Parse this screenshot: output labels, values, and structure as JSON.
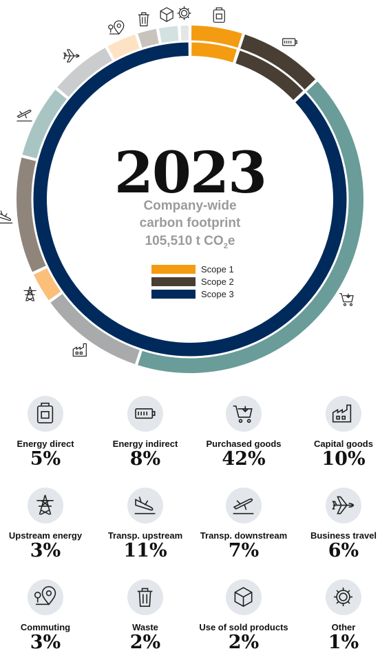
{
  "chart_data": {
    "type": "donut",
    "year": "2023",
    "subtitle": [
      "Company-wide",
      "carbon footprint"
    ],
    "total": {
      "value": "105,510",
      "unit_prefix": "t CO",
      "unit_sub": "2",
      "unit_suffix": "e"
    },
    "legend": [
      {
        "label": "Scope 1",
        "color": "#f39c12"
      },
      {
        "label": "Scope 2",
        "color": "#483e33"
      },
      {
        "label": "Scope 3",
        "color": "#002a5c"
      }
    ],
    "inner_ring": [
      {
        "scope": "Scope 1",
        "value": 5
      },
      {
        "scope": "Scope 2",
        "value": 8
      },
      {
        "scope": "Scope 3",
        "value": 87
      }
    ],
    "outer_ring": [
      {
        "category": "Energy direct",
        "value": 5,
        "color": "#f39c12",
        "icon": "fuel-can-icon"
      },
      {
        "category": "Energy indirect",
        "value": 8,
        "color": "#483e33",
        "icon": "battery-icon"
      },
      {
        "category": "Purchased goods",
        "value": 42,
        "color": "#6a9c99",
        "icon": "shopping-cart-icon"
      },
      {
        "category": "Capital goods",
        "value": 10,
        "color": "#a9aaab",
        "icon": "factory-icon"
      },
      {
        "category": "Upstream energy",
        "value": 3,
        "color": "#fbbf7a",
        "icon": "power-pylon-icon"
      },
      {
        "category": "Transp. upstream",
        "value": 11,
        "color": "#8f857b",
        "icon": "plane-landing-icon"
      },
      {
        "category": "Transp. downstream",
        "value": 7,
        "color": "#a8c5c3",
        "icon": "plane-takeoff-icon"
      },
      {
        "category": "Business travel",
        "value": 6,
        "color": "#cbcccd",
        "icon": "airplane-icon"
      },
      {
        "category": "Commuting",
        "value": 3,
        "color": "#fde3c3",
        "icon": "location-pin-icon"
      },
      {
        "category": "Waste",
        "value": 2,
        "color": "#c9c3bd",
        "icon": "trash-icon"
      },
      {
        "category": "Use of sold products",
        "value": 2,
        "color": "#d3e2e1",
        "icon": "box-icon"
      },
      {
        "category": "Other",
        "value": 1,
        "color": "#e4e5e6",
        "icon": "gear-icon"
      }
    ],
    "tiles": [
      {
        "label": "Energy direct",
        "pct": "5%",
        "icon": "fuel-can-icon"
      },
      {
        "label": "Energy indirect",
        "pct": "8%",
        "icon": "battery-icon"
      },
      {
        "label": "Purchased goods",
        "pct": "42%",
        "icon": "shopping-cart-icon"
      },
      {
        "label": "Capital goods",
        "pct": "10%",
        "icon": "factory-icon"
      },
      {
        "label": "Upstream energy",
        "pct": "3%",
        "icon": "power-pylon-icon"
      },
      {
        "label": "Transp. upstream",
        "pct": "11%",
        "icon": "plane-landing-icon"
      },
      {
        "label": "Transp. downstream",
        "pct": "7%",
        "icon": "plane-takeoff-icon"
      },
      {
        "label": "Business travel",
        "pct": "6%",
        "icon": "airplane-icon"
      },
      {
        "label": "Commuting",
        "pct": "3%",
        "icon": "location-pin-icon"
      },
      {
        "label": "Waste",
        "pct": "2%",
        "icon": "trash-icon"
      },
      {
        "label": "Use of sold products",
        "pct": "2%",
        "icon": "box-icon"
      },
      {
        "label": "Other",
        "pct": "1%",
        "icon": "gear-icon"
      }
    ]
  }
}
